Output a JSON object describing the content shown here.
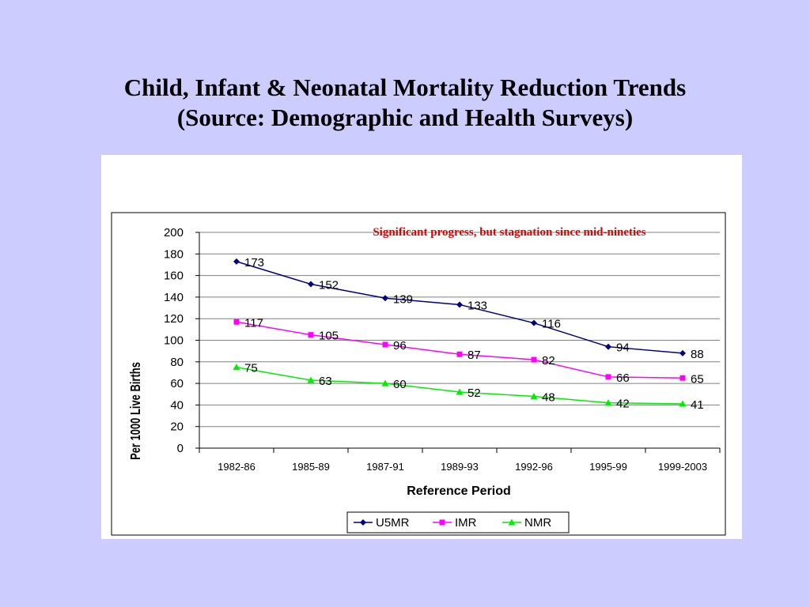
{
  "slide": {
    "title_line1": "Child, Infant & Neonatal Mortality Reduction Trends",
    "title_line2": "(Source: Demographic and Health Surveys)"
  },
  "chart_data": {
    "type": "line",
    "categories": [
      "1982-86",
      "1985-89",
      "1987-91",
      "1989-93",
      "1992-96",
      "1995-99",
      "1999-2003"
    ],
    "series": [
      {
        "name": "U5MR",
        "values": [
          173,
          152,
          139,
          133,
          116,
          94,
          88
        ],
        "color": "#000080",
        "marker": "diamond"
      },
      {
        "name": "IMR",
        "values": [
          117,
          105,
          96,
          87,
          82,
          66,
          65
        ],
        "color": "#ff00ff",
        "marker": "square"
      },
      {
        "name": "NMR",
        "values": [
          75,
          63,
          60,
          52,
          48,
          42,
          41
        ],
        "color": "#00ee00",
        "marker": "triangle"
      }
    ],
    "xlabel": "Reference Period",
    "ylabel": "Per 1000 Live Births",
    "ylim": [
      0,
      200
    ],
    "yticks": [
      0,
      20,
      40,
      60,
      80,
      100,
      120,
      140,
      160,
      180,
      200
    ],
    "annotation": "Significant progress, but stagnation since mid-nineties",
    "grid": "horizontal",
    "legend_position": "bottom"
  }
}
